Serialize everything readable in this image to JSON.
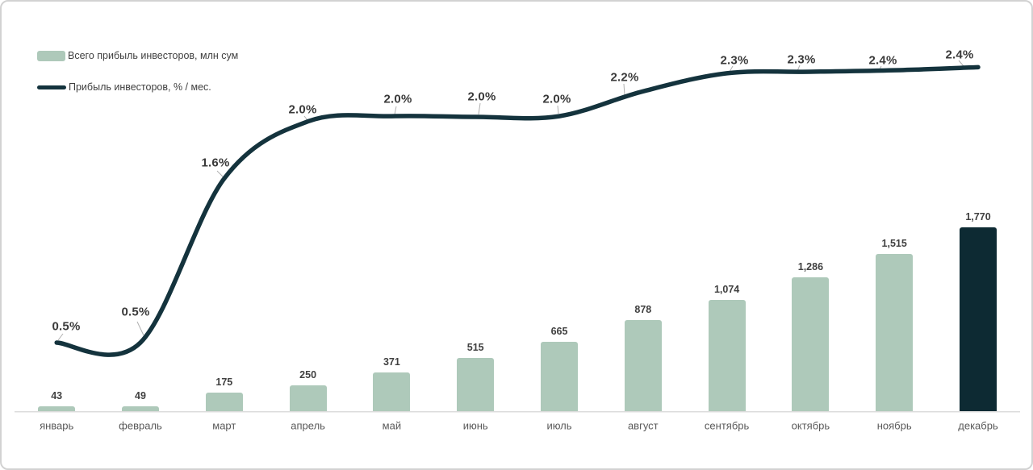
{
  "legend": {
    "bar_series_label": "Всего прибыль инвесторов, млн сум",
    "line_series_label": "Прибыль инвесторов, % / мес."
  },
  "colors": {
    "bar": "#aec9ba",
    "bar_highlight": "#0d2a33",
    "line": "#14333d",
    "axis": "#dcdcdc",
    "leader": "#b0b0b0",
    "value_label": "#404040",
    "month_label": "#595959",
    "pct_label": "#3a3a3a"
  },
  "chart_data": {
    "type": "bar",
    "combo": "bar+line",
    "title": "",
    "xlabel": "",
    "ylabel": "",
    "grid": false,
    "legend_position": "top-left",
    "categories": [
      "январь",
      "февраль",
      "март",
      "апрель",
      "май",
      "июнь",
      "июль",
      "август",
      "сентябрь",
      "октябрь",
      "ноябрь",
      "декабрь"
    ],
    "series": [
      {
        "name": "Всего прибыль инвесторов, млн сум",
        "type": "bar",
        "unit": "млн сум",
        "values": [
          43,
          49,
          175,
          250,
          371,
          515,
          665,
          878,
          1074,
          1286,
          1515,
          1770
        ],
        "value_labels": [
          "43",
          "49",
          "175",
          "250",
          "371",
          "515",
          "665",
          "878",
          "1,074",
          "1,286",
          "1,515",
          "1,770"
        ],
        "highlight_index": 11,
        "ylim": [
          0,
          1900
        ]
      },
      {
        "name": "Прибыль инвесторов, % / мес.",
        "type": "line",
        "unit": "% / мес.",
        "values": [
          0.5,
          0.5,
          1.6,
          2.0,
          2.0,
          2.0,
          2.0,
          2.2,
          2.3,
          2.3,
          2.4,
          2.4
        ],
        "value_labels": [
          "0.5%",
          "0.5%",
          "1.6%",
          "2.0%",
          "2.0%",
          "2.0%",
          "2.0%",
          "2.2%",
          "2.3%",
          "2.3%",
          "2.4%",
          "2.4%"
        ],
        "values_render": [
          0.5,
          0.5,
          1.59,
          1.97,
          2.005,
          2.0,
          2.005,
          2.17,
          2.29,
          2.3,
          2.31,
          2.33
        ],
        "smoothed": true
      }
    ]
  }
}
